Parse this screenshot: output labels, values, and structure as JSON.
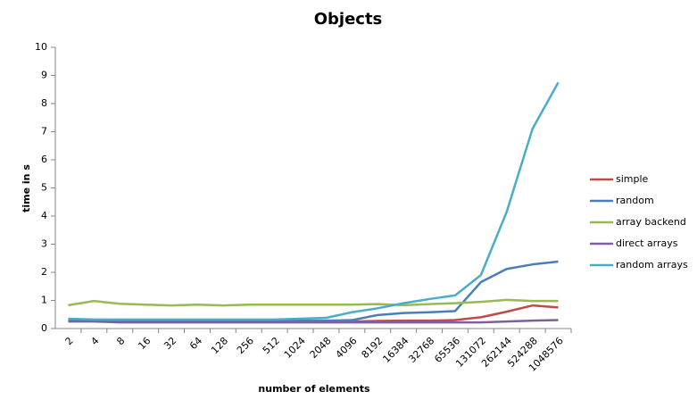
{
  "chart_data": {
    "type": "line",
    "title": "Objects",
    "x_label": "number of elements",
    "y_label": "time in s",
    "categories": [
      "2",
      "4",
      "8",
      "16",
      "32",
      "64",
      "128",
      "256",
      "512",
      "1024",
      "2048",
      "4096",
      "8192",
      "16384",
      "32768",
      "65536",
      "131072",
      "262144",
      "524288",
      "1048576"
    ],
    "series": [
      {
        "name": "simple",
        "color": "#be4b48",
        "values": [
          0.28,
          0.28,
          0.25,
          0.25,
          0.25,
          0.25,
          0.25,
          0.25,
          0.25,
          0.25,
          0.25,
          0.25,
          0.27,
          0.28,
          0.28,
          0.3,
          0.4,
          0.6,
          0.82,
          0.75
        ]
      },
      {
        "name": "random",
        "color": "#4a7ebb",
        "values": [
          0.3,
          0.3,
          0.28,
          0.28,
          0.28,
          0.28,
          0.28,
          0.28,
          0.28,
          0.28,
          0.28,
          0.3,
          0.48,
          0.55,
          0.58,
          0.62,
          1.65,
          2.12,
          2.28,
          2.38
        ]
      },
      {
        "name": "array backend",
        "color": "#98b954",
        "values": [
          0.83,
          0.98,
          0.88,
          0.85,
          0.82,
          0.85,
          0.82,
          0.85,
          0.85,
          0.85,
          0.85,
          0.85,
          0.87,
          0.83,
          0.87,
          0.9,
          0.95,
          1.02,
          0.98,
          0.98
        ]
      },
      {
        "name": "direct arrays",
        "color": "#7d60a0",
        "values": [
          0.25,
          0.25,
          0.22,
          0.22,
          0.22,
          0.22,
          0.22,
          0.22,
          0.22,
          0.22,
          0.22,
          0.22,
          0.22,
          0.22,
          0.22,
          0.22,
          0.22,
          0.25,
          0.28,
          0.3
        ]
      },
      {
        "name": "random arrays",
        "color": "#4bacc6",
        "values": [
          0.35,
          0.32,
          0.32,
          0.32,
          0.32,
          0.32,
          0.32,
          0.32,
          0.32,
          0.35,
          0.38,
          0.58,
          0.72,
          0.9,
          1.05,
          1.18,
          1.9,
          4.15,
          7.1,
          8.75
        ]
      }
    ],
    "ylim": [
      0,
      10
    ],
    "yticks": [
      0,
      1,
      2,
      3,
      4,
      5,
      6,
      7,
      8,
      9,
      10
    ],
    "grid": false,
    "legend": "right"
  }
}
